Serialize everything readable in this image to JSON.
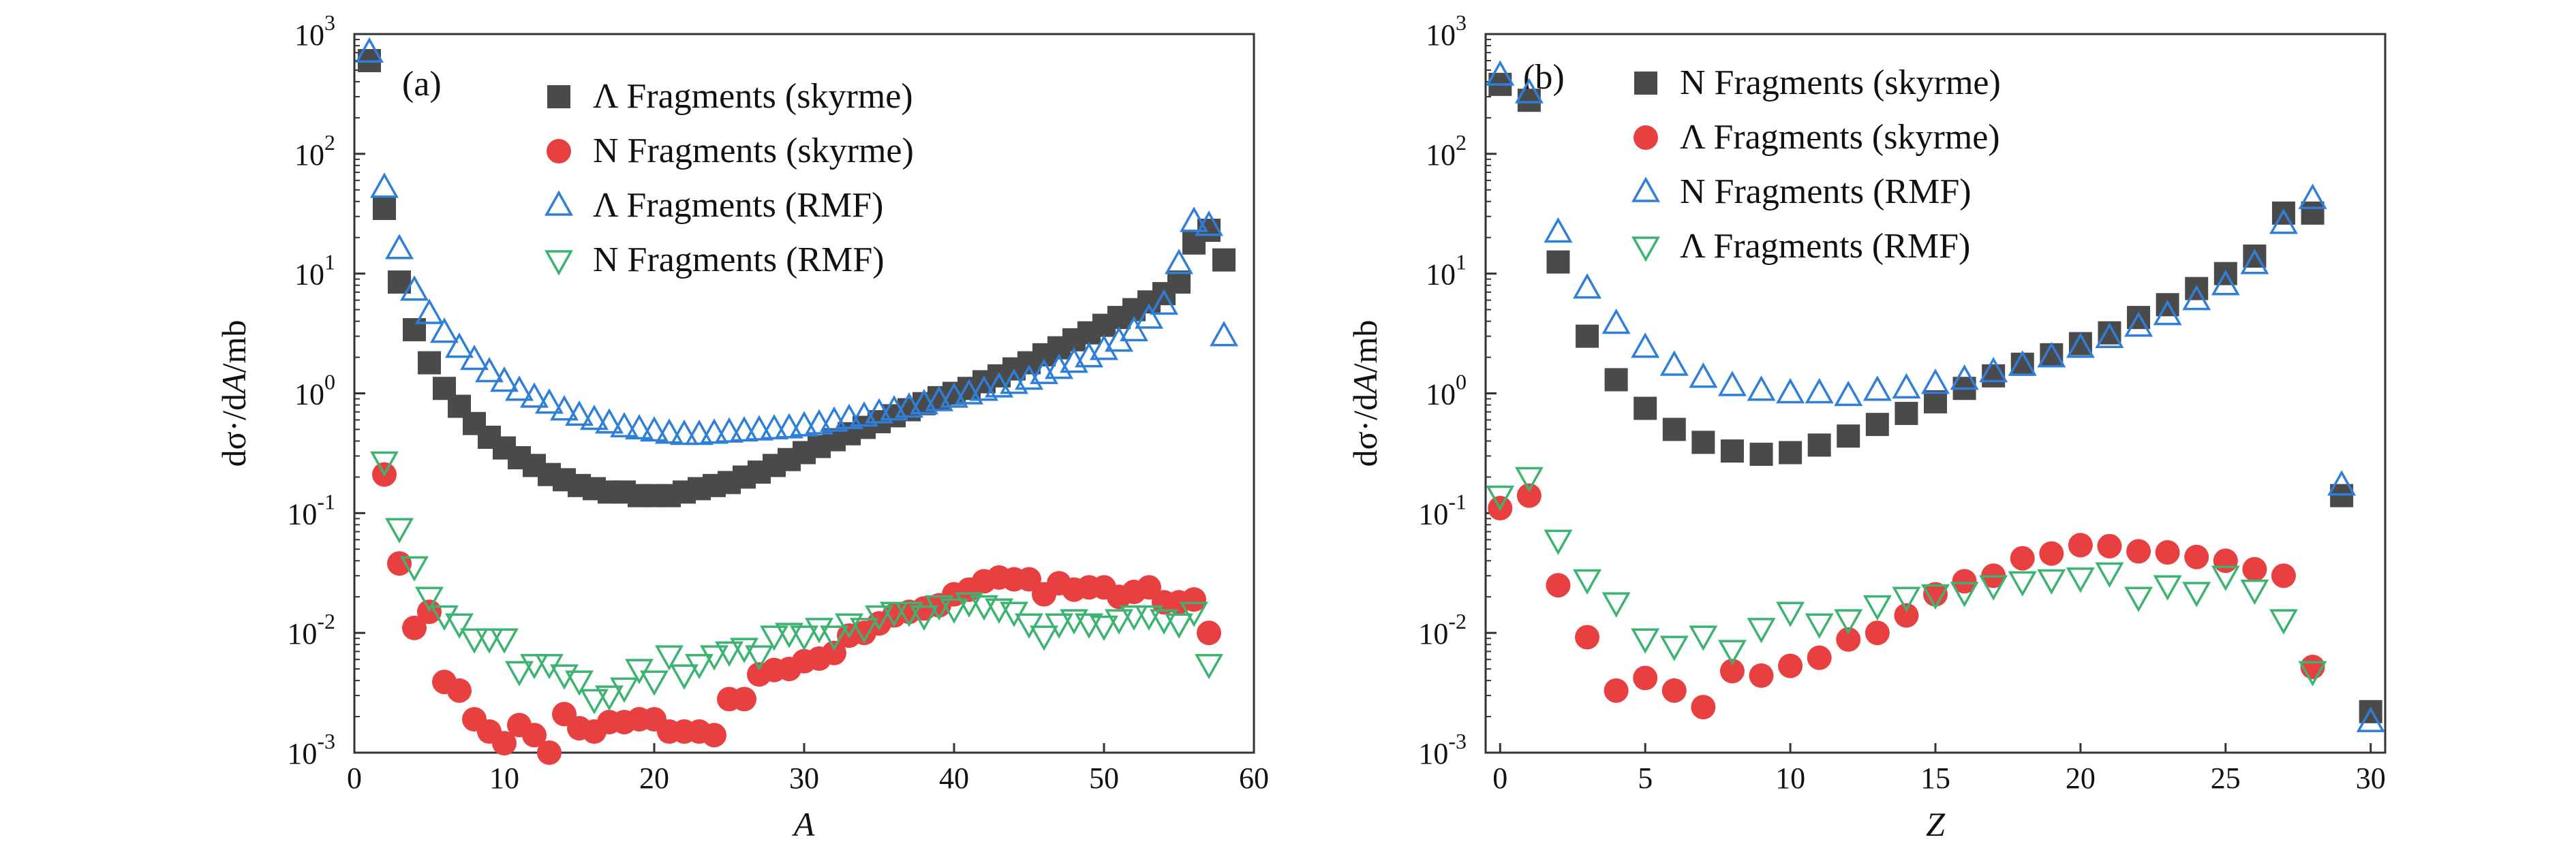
{
  "chart_data": [
    {
      "type": "scatter",
      "panel_label": "(a)",
      "xlabel_var": "A",
      "ylabel": {
        "prefix": "dσ",
        "mid": "·/d",
        "var": "A",
        "suffix": "/mb"
      },
      "xlim": [
        0,
        60
      ],
      "ylim": [
        0.001,
        1000
      ],
      "y_scale": "log",
      "x_ticks": [
        "0",
        "10",
        "20",
        "30",
        "40",
        "50",
        "60"
      ],
      "y_tick_base": "10",
      "y_tick_exponents": [
        "-3",
        "-2",
        "-1",
        "0",
        "1",
        "2",
        "3"
      ],
      "legend_position": "top-center",
      "series": [
        {
          "name": "Λ Fragments (skyrme)",
          "marker": "square",
          "color": "#4a4a4a",
          "x": [
            1,
            2,
            3,
            4,
            5,
            6,
            7,
            8,
            9,
            10,
            11,
            12,
            13,
            14,
            15,
            16,
            17,
            18,
            19,
            20,
            21,
            22,
            23,
            24,
            25,
            26,
            27,
            28,
            29,
            30,
            31,
            32,
            33,
            34,
            35,
            36,
            37,
            38,
            39,
            40,
            41,
            42,
            43,
            44,
            45,
            46,
            47,
            48,
            49,
            50,
            51,
            52,
            53,
            54,
            55,
            56,
            57,
            58
          ],
          "y": [
            600,
            35,
            8.5,
            3.4,
            1.8,
            1.1,
            0.78,
            0.56,
            0.43,
            0.35,
            0.29,
            0.25,
            0.21,
            0.19,
            0.17,
            0.16,
            0.15,
            0.15,
            0.14,
            0.14,
            0.14,
            0.15,
            0.16,
            0.17,
            0.18,
            0.2,
            0.22,
            0.25,
            0.28,
            0.32,
            0.36,
            0.41,
            0.46,
            0.52,
            0.58,
            0.65,
            0.73,
            0.82,
            0.92,
            1.0,
            1.1,
            1.25,
            1.4,
            1.6,
            1.8,
            2.1,
            2.4,
            2.8,
            3.2,
            3.7,
            4.3,
            5.0,
            5.8,
            6.8,
            8.5,
            18,
            23,
            13
          ]
        },
        {
          "name": "N Fragments (skyrme)",
          "marker": "circle",
          "color": "#e84040",
          "x": [
            2,
            3,
            4,
            5,
            6,
            7,
            8,
            9,
            10,
            11,
            12,
            13,
            14,
            15,
            16,
            17,
            18,
            19,
            20,
            21,
            22,
            23,
            24,
            25,
            26,
            27,
            28,
            29,
            30,
            31,
            32,
            33,
            34,
            35,
            36,
            37,
            38,
            39,
            40,
            41,
            42,
            43,
            44,
            45,
            46,
            47,
            48,
            49,
            50,
            51,
            52,
            53,
            54,
            55,
            56,
            57
          ],
          "y": [
            0.21,
            0.038,
            0.011,
            0.015,
            0.0039,
            0.0033,
            0.0019,
            0.0015,
            0.0012,
            0.0017,
            0.0014,
            0.001,
            0.0021,
            0.0016,
            0.0015,
            0.0018,
            0.0018,
            0.0019,
            0.0019,
            0.0015,
            0.0015,
            0.0015,
            0.0014,
            0.0028,
            0.0028,
            0.0045,
            0.0049,
            0.005,
            0.0058,
            0.0061,
            0.0068,
            0.0095,
            0.01,
            0.012,
            0.014,
            0.015,
            0.016,
            0.017,
            0.021,
            0.023,
            0.027,
            0.029,
            0.028,
            0.028,
            0.021,
            0.026,
            0.023,
            0.024,
            0.024,
            0.02,
            0.022,
            0.024,
            0.018,
            0.018,
            0.019,
            0.01
          ]
        },
        {
          "name": "Λ Fragments (RMF)",
          "marker": "triangle-up",
          "color": "#2f7fd8",
          "x": [
            1,
            2,
            3,
            4,
            5,
            6,
            7,
            8,
            9,
            10,
            11,
            12,
            13,
            14,
            15,
            16,
            17,
            18,
            19,
            20,
            21,
            22,
            23,
            24,
            25,
            26,
            27,
            28,
            29,
            30,
            31,
            32,
            33,
            34,
            35,
            36,
            37,
            38,
            39,
            40,
            41,
            42,
            43,
            44,
            45,
            46,
            47,
            48,
            49,
            50,
            51,
            52,
            53,
            54,
            55,
            56,
            57,
            58
          ],
          "y": [
            700,
            52,
            16,
            7.2,
            4.6,
            3.2,
            2.4,
            1.9,
            1.5,
            1.25,
            1.05,
            0.92,
            0.82,
            0.72,
            0.65,
            0.6,
            0.56,
            0.52,
            0.5,
            0.48,
            0.46,
            0.45,
            0.45,
            0.46,
            0.47,
            0.48,
            0.49,
            0.5,
            0.51,
            0.53,
            0.55,
            0.58,
            0.61,
            0.64,
            0.68,
            0.72,
            0.76,
            0.81,
            0.86,
            0.92,
            0.98,
            1.05,
            1.12,
            1.2,
            1.3,
            1.45,
            1.6,
            1.8,
            2.0,
            2.3,
            2.7,
            3.3,
            4.2,
            5.5,
            12,
            27,
            25,
            3.0
          ]
        },
        {
          "name": "N Fragments (RMF)",
          "marker": "triangle-down",
          "color": "#3cb371",
          "x": [
            2,
            3,
            4,
            5,
            6,
            7,
            8,
            9,
            10,
            11,
            12,
            13,
            14,
            15,
            16,
            17,
            18,
            19,
            20,
            21,
            22,
            23,
            24,
            25,
            26,
            27,
            28,
            29,
            30,
            31,
            32,
            33,
            34,
            35,
            36,
            37,
            38,
            39,
            40,
            41,
            42,
            43,
            44,
            45,
            46,
            47,
            48,
            49,
            50,
            51,
            52,
            53,
            54,
            55,
            56,
            57
          ],
          "y": [
            0.27,
            0.075,
            0.036,
            0.02,
            0.014,
            0.012,
            0.009,
            0.009,
            0.009,
            0.0048,
            0.0055,
            0.0055,
            0.0045,
            0.004,
            0.0028,
            0.003,
            0.0035,
            0.005,
            0.004,
            0.0065,
            0.0045,
            0.0055,
            0.0065,
            0.007,
            0.0075,
            0.0065,
            0.0095,
            0.01,
            0.0095,
            0.011,
            0.0095,
            0.012,
            0.011,
            0.014,
            0.015,
            0.015,
            0.014,
            0.017,
            0.016,
            0.018,
            0.017,
            0.016,
            0.015,
            0.012,
            0.0095,
            0.012,
            0.013,
            0.012,
            0.0115,
            0.013,
            0.014,
            0.014,
            0.013,
            0.012,
            0.015,
            0.0055
          ]
        }
      ]
    },
    {
      "type": "scatter",
      "panel_label": "(b)",
      "xlabel_var": "Z",
      "ylabel": {
        "prefix": "dσ",
        "mid": "·/d",
        "var": "A",
        "suffix": "/mb"
      },
      "xlim": [
        -0.5,
        30.5
      ],
      "ylim": [
        0.001,
        1000
      ],
      "y_scale": "log",
      "x_ticks": [
        "0",
        "5",
        "10",
        "15",
        "20",
        "25",
        "30"
      ],
      "y_tick_base": "10",
      "y_tick_exponents": [
        "-3",
        "-2",
        "-1",
        "0",
        "1",
        "2",
        "3"
      ],
      "legend_position": "top-center",
      "series": [
        {
          "name": "N Fragments (skyrme)",
          "marker": "square",
          "color": "#4a4a4a",
          "x": [
            0,
            1,
            2,
            3,
            4,
            5,
            6,
            7,
            8,
            9,
            10,
            11,
            12,
            13,
            14,
            15,
            16,
            17,
            18,
            19,
            20,
            21,
            22,
            23,
            24,
            25,
            26,
            27,
            28,
            29,
            30
          ],
          "y": [
            380,
            280,
            12.5,
            3.0,
            1.3,
            0.75,
            0.5,
            0.39,
            0.33,
            0.31,
            0.32,
            0.37,
            0.44,
            0.55,
            0.68,
            0.85,
            1.1,
            1.4,
            1.75,
            2.1,
            2.6,
            3.2,
            4.3,
            5.5,
            7.5,
            10,
            14,
            32,
            32,
            0.14,
            0.0022
          ]
        },
        {
          "name": "Λ Fragments (skyrme)",
          "marker": "circle",
          "color": "#e84040",
          "x": [
            0,
            1,
            2,
            3,
            4,
            5,
            6,
            7,
            8,
            9,
            10,
            11,
            12,
            13,
            14,
            15,
            16,
            17,
            18,
            19,
            20,
            21,
            22,
            23,
            24,
            25,
            26,
            27,
            28
          ],
          "y": [
            0.11,
            0.14,
            0.025,
            0.0092,
            0.0033,
            0.0042,
            0.0033,
            0.0024,
            0.0048,
            0.0044,
            0.0053,
            0.0062,
            0.0088,
            0.01,
            0.014,
            0.021,
            0.027,
            0.03,
            0.042,
            0.046,
            0.054,
            0.053,
            0.048,
            0.047,
            0.043,
            0.04,
            0.034,
            0.03,
            0.0052
          ]
        },
        {
          "name": "N Fragments (RMF)",
          "marker": "triangle-up",
          "color": "#2f7fd8",
          "x": [
            0,
            1,
            2,
            3,
            4,
            5,
            6,
            7,
            8,
            9,
            10,
            11,
            12,
            13,
            14,
            15,
            16,
            17,
            18,
            19,
            20,
            21,
            22,
            23,
            24,
            25,
            26,
            27,
            28,
            29,
            30
          ],
          "y": [
            450,
            320,
            22,
            7.5,
            3.8,
            2.4,
            1.7,
            1.35,
            1.15,
            1.05,
            1.0,
            1.0,
            0.95,
            1.05,
            1.1,
            1.2,
            1.3,
            1.5,
            1.7,
            2.0,
            2.4,
            2.9,
            3.6,
            4.5,
            6.0,
            8.0,
            12,
            26,
            42,
            0.17,
            0.0018
          ]
        },
        {
          "name": "Λ Fragments (RMF)",
          "marker": "triangle-down",
          "color": "#3cb371",
          "x": [
            0,
            1,
            2,
            3,
            4,
            5,
            6,
            7,
            8,
            9,
            10,
            11,
            12,
            13,
            14,
            15,
            16,
            17,
            18,
            19,
            20,
            21,
            22,
            23,
            24,
            25,
            26,
            27,
            28
          ],
          "y": [
            0.14,
            0.2,
            0.06,
            0.028,
            0.018,
            0.009,
            0.0078,
            0.0095,
            0.0072,
            0.011,
            0.015,
            0.012,
            0.013,
            0.017,
            0.02,
            0.021,
            0.022,
            0.025,
            0.027,
            0.028,
            0.029,
            0.032,
            0.02,
            0.025,
            0.022,
            0.03,
            0.023,
            0.013,
            0.0048
          ]
        }
      ]
    }
  ]
}
